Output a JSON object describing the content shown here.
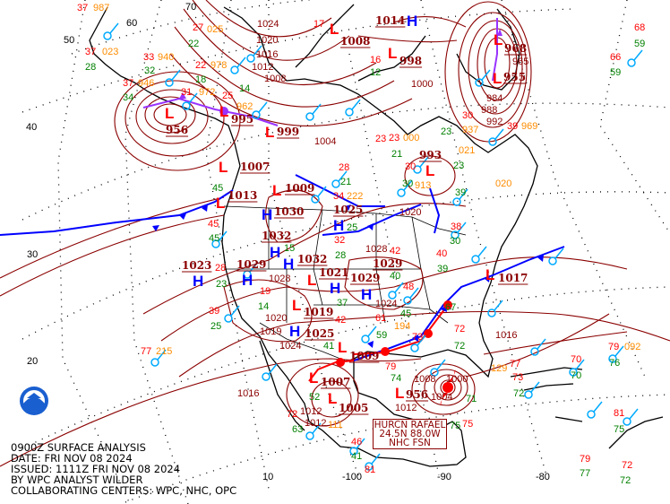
{
  "caption": {
    "line1": "0900Z SURFACE ANALYSIS",
    "line2": "DATE: FRI NOV 08 2024",
    "line3": "ISSUED: 1111Z FRI NOV 08 2024",
    "line4": "BY WPC ANALYST WILDER",
    "line5": "COLLABORATING CENTERS: WPC, NHC, OPC"
  },
  "hurricane_box": {
    "line1": "HURCN RAFAEL",
    "line2": "24.5N 88.0W",
    "line3": "NHC FSN"
  },
  "logo": {
    "text": "NOAA",
    "icon": "noaa-logo"
  },
  "colors": {
    "isobar": "#8b0000",
    "high": "#0000ff",
    "low": "#ff0000",
    "cold_front": "#0000ff",
    "warm_front": "#ff0000",
    "occluded_front": "#9933ff",
    "temperature": "#ff0000",
    "dewpoint": "#008000",
    "pressure": "#ff8c00",
    "wind": "#00aaff"
  },
  "grid_labels": [
    "70",
    "60",
    "50",
    "40",
    "30",
    "20",
    "10",
    "-100",
    "-90",
    "-80"
  ],
  "pressure_centers": [
    {
      "type": "H",
      "value": "1014"
    },
    {
      "type": "L",
      "value": "998"
    },
    {
      "type": "L",
      "value": "968"
    },
    {
      "type": "L",
      "value": "955"
    },
    {
      "type": "L",
      "value": "1008"
    },
    {
      "type": "L",
      "value": "956"
    },
    {
      "type": "L",
      "value": "995"
    },
    {
      "type": "L",
      "value": "999"
    },
    {
      "type": "L",
      "value": "1007"
    },
    {
      "type": "L",
      "value": "1013"
    },
    {
      "type": "L",
      "value": "1009"
    },
    {
      "type": "H",
      "value": "1030"
    },
    {
      "type": "H",
      "value": "1032"
    },
    {
      "type": "H",
      "value": "1032"
    },
    {
      "type": "H",
      "value": "1023"
    },
    {
      "type": "H",
      "value": "1029"
    },
    {
      "type": "L",
      "value": "1021"
    },
    {
      "type": "H",
      "value": "1029"
    },
    {
      "type": "H",
      "value": "1029"
    },
    {
      "type": "H",
      "value": "1025"
    },
    {
      "type": "L",
      "value": "1019"
    },
    {
      "type": "H",
      "value": "1025"
    },
    {
      "type": "L",
      "value": "993"
    },
    {
      "type": "L",
      "value": "1017"
    },
    {
      "type": "L",
      "value": "1009"
    },
    {
      "type": "L",
      "value": "1007"
    },
    {
      "type": "L",
      "value": "1005"
    },
    {
      "type": "L",
      "value": "956"
    }
  ],
  "isobar_labels": [
    "1024",
    "1020",
    "1016",
    "1012",
    "1008",
    "1004",
    "965",
    "984",
    "988",
    "992",
    "1000",
    "1020",
    "1024",
    "1016",
    "1016",
    "1012",
    "1012",
    "1008",
    "1000",
    "1004",
    "1020",
    "1028",
    "1028",
    "1019",
    "1024",
    "1012"
  ],
  "stations": [
    {
      "v": "37",
      "k": "t"
    },
    {
      "v": "987",
      "k": "p"
    },
    {
      "v": "37",
      "k": "t"
    },
    {
      "v": "023",
      "k": "p"
    },
    {
      "v": "28",
      "k": "d"
    },
    {
      "v": "37",
      "k": "t"
    },
    {
      "v": "946",
      "k": "p"
    },
    {
      "v": "34",
      "k": "d"
    },
    {
      "v": "33",
      "k": "t"
    },
    {
      "v": "940",
      "k": "p"
    },
    {
      "v": "32",
      "k": "d"
    },
    {
      "v": "27",
      "k": "t"
    },
    {
      "v": "025",
      "k": "p"
    },
    {
      "v": "22",
      "k": "d"
    },
    {
      "v": "22",
      "k": "t"
    },
    {
      "v": "978",
      "k": "p"
    },
    {
      "v": "18",
      "k": "d"
    },
    {
      "v": "31",
      "k": "t"
    },
    {
      "v": "972",
      "k": "p"
    },
    {
      "v": "25",
      "k": "t"
    },
    {
      "v": "962",
      "k": "p"
    },
    {
      "v": "14",
      "k": "d"
    },
    {
      "v": "17",
      "k": "t"
    },
    {
      "v": "16",
      "k": "t"
    },
    {
      "v": "12",
      "k": "d"
    },
    {
      "v": "68",
      "k": "t"
    },
    {
      "v": "59",
      "k": "d"
    },
    {
      "v": "66",
      "k": "t"
    },
    {
      "v": "59",
      "k": "d"
    },
    {
      "v": "39",
      "k": "t"
    },
    {
      "v": "969",
      "k": "p"
    },
    {
      "v": "30",
      "k": "t"
    },
    {
      "v": "937",
      "k": "p"
    },
    {
      "v": "23",
      "k": "d"
    },
    {
      "v": "23",
      "k": "t"
    },
    {
      "v": "000",
      "k": "p"
    },
    {
      "v": "21",
      "k": "d"
    },
    {
      "v": "30",
      "k": "t"
    },
    {
      "v": "913",
      "k": "p"
    },
    {
      "v": "30",
      "k": "d"
    },
    {
      "v": "021",
      "k": "p"
    },
    {
      "v": "23",
      "k": "d"
    },
    {
      "v": "39",
      "k": "d"
    },
    {
      "v": "020",
      "k": "p"
    },
    {
      "v": "28",
      "k": "t"
    },
    {
      "v": "34",
      "k": "t"
    },
    {
      "v": "222",
      "k": "p"
    },
    {
      "v": "21",
      "k": "d"
    },
    {
      "v": "25",
      "k": "d"
    },
    {
      "v": "32",
      "k": "t"
    },
    {
      "v": "28",
      "k": "d"
    },
    {
      "v": "42",
      "k": "t"
    },
    {
      "v": "40",
      "k": "d"
    },
    {
      "v": "48",
      "k": "t"
    },
    {
      "v": "45",
      "k": "d"
    },
    {
      "v": "61",
      "k": "t"
    },
    {
      "v": "194",
      "k": "p"
    },
    {
      "v": "59",
      "k": "d"
    },
    {
      "v": "73",
      "k": "t"
    },
    {
      "v": "72",
      "k": "t"
    },
    {
      "v": "72",
      "k": "d"
    },
    {
      "v": "67",
      "k": "d"
    },
    {
      "v": "38",
      "k": "t"
    },
    {
      "v": "30",
      "k": "d"
    },
    {
      "v": "40",
      "k": "t"
    },
    {
      "v": "39",
      "k": "d"
    },
    {
      "v": "37",
      "k": "d"
    },
    {
      "v": "42",
      "k": "t"
    },
    {
      "v": "41",
      "k": "d"
    },
    {
      "v": "52",
      "k": "d"
    },
    {
      "v": "28",
      "k": "t"
    },
    {
      "v": "23",
      "k": "d"
    },
    {
      "v": "39",
      "k": "t"
    },
    {
      "v": "25",
      "k": "d"
    },
    {
      "v": "45",
      "k": "t"
    },
    {
      "v": "45",
      "k": "d"
    },
    {
      "v": "45",
      "k": "d"
    },
    {
      "v": "19",
      "k": "t"
    },
    {
      "v": "15",
      "k": "d"
    },
    {
      "v": "14",
      "k": "d"
    },
    {
      "v": "77",
      "k": "t"
    },
    {
      "v": "215",
      "k": "p"
    },
    {
      "v": "63",
      "k": "d"
    },
    {
      "v": "46",
      "k": "t"
    },
    {
      "v": "41",
      "k": "d"
    },
    {
      "v": "81",
      "k": "t"
    },
    {
      "v": "72",
      "k": "t"
    },
    {
      "v": "111",
      "k": "p"
    },
    {
      "v": "74",
      "k": "d"
    },
    {
      "v": "79",
      "k": "t"
    },
    {
      "v": "75",
      "k": "d"
    },
    {
      "v": "75",
      "k": "t"
    },
    {
      "v": "71",
      "k": "d"
    },
    {
      "v": "79",
      "k": "t"
    },
    {
      "v": "092",
      "k": "p"
    },
    {
      "v": "76",
      "k": "d"
    },
    {
      "v": "70",
      "k": "t"
    },
    {
      "v": "70",
      "k": "d"
    },
    {
      "v": "73",
      "k": "t"
    },
    {
      "v": "72",
      "k": "d"
    },
    {
      "v": "81",
      "k": "t"
    },
    {
      "v": "75",
      "k": "d"
    },
    {
      "v": "79",
      "k": "t"
    },
    {
      "v": "77",
      "k": "d"
    },
    {
      "v": "72",
      "k": "t"
    },
    {
      "v": "72",
      "k": "d"
    },
    {
      "v": "129",
      "k": "p"
    },
    {
      "v": "77",
      "k": "t"
    },
    {
      "v": "23",
      "k": "t"
    }
  ]
}
